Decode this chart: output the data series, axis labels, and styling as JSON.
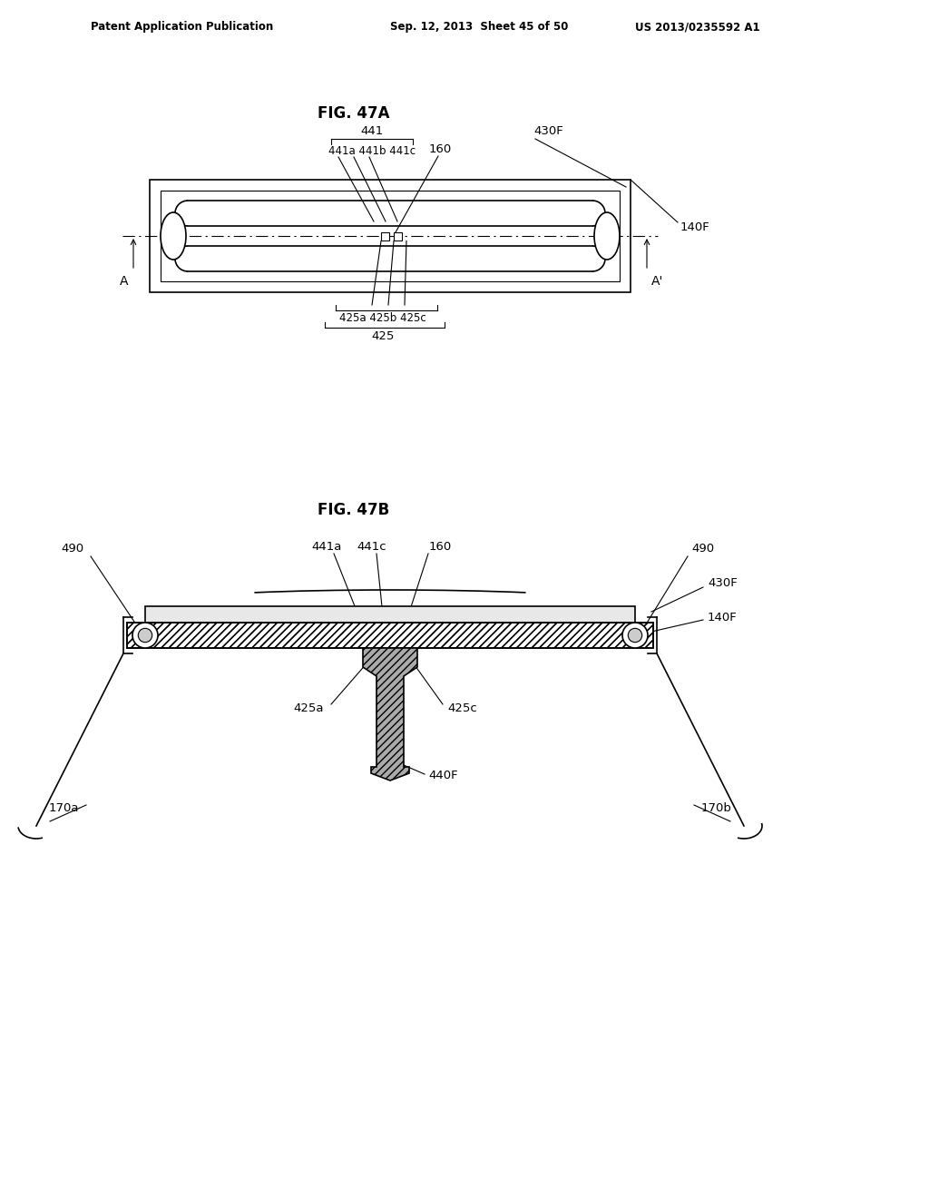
{
  "bg_color": "#ffffff",
  "header_left": "Patent Application Publication",
  "header_mid": "Sep. 12, 2013  Sheet 45 of 50",
  "header_right": "US 2013/0235592 A1",
  "fig47a_title": "FIG. 47A",
  "fig47b_title": "FIG. 47B",
  "line_color": "#000000"
}
